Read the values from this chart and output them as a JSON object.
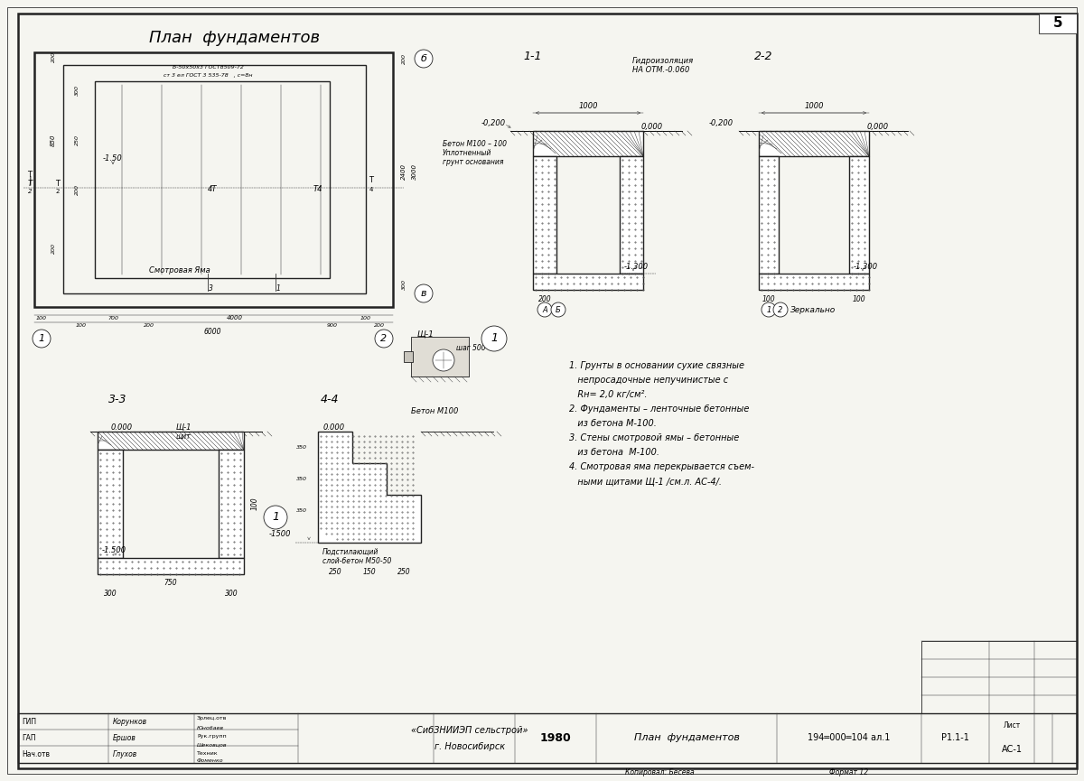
{
  "title": "План  фундаментов",
  "bg": "#f5f5f0",
  "fg": "#1a1a1a",
  "page_num": "5",
  "notes": [
    "1. Грунты в основании сухие связные",
    "   непросадочные непучинистые с",
    "   Rн= 2,0 кг/см².",
    "2. Фундаменты – ленточные бетонные",
    "   из бетона М-100.",
    "3. Стены смотровой ямы – бетонные",
    "   из бетона  М-100.",
    "4. Смотровая яма перекрывается съем-",
    "   ными щитами Щ-1 /см.л. АС-4/."
  ],
  "footer_org": "«СибЗНИИЭП сельстрой»",
  "footer_city": "г. Новосибирск",
  "footer_year": "1980",
  "footer_title": "План  фундаментов",
  "footer_num": "194═000═104 ал.1",
  "footer_sheet": "Р1.1-1",
  "footer_list": "АС-1"
}
